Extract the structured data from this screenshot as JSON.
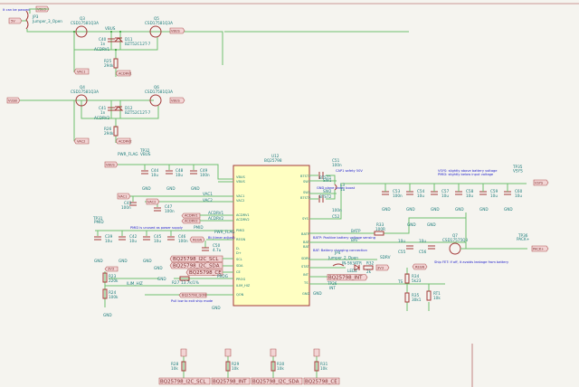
{
  "notes": {
    "jp3": "It can be passed",
    "pmid": "PMID is unused as power supply",
    "ilim": "Pull low to exit ship mode",
    "cap": "CAP1 safety 50V",
    "gnd": "GND plane under boost",
    "batp": "BATP: Positive battery voltage sensing",
    "bat": "BAT: Battery charging connection",
    "sys1": "VSYS: slightly above battery voltage",
    "sys2": "PMID: slightly below input voltage",
    "q7": "Ship FET: if off, it avoids leakage from battery",
    "tst": "Bt (timer adjust)"
  },
  "ic": {
    "ref": "U12",
    "value": "BQ25798",
    "left_pins": [
      "VBUS",
      "VBUS",
      "VAC1",
      "VAC2",
      "ACDRV1",
      "ACDRV2",
      "PMID",
      "REGN",
      "D-",
      "D+",
      "SCL",
      "SDA",
      "CE",
      "PROG",
      "ILIM_HIZ",
      "QON"
    ],
    "right_pins": [
      "BTST1",
      "SW1",
      "SW1",
      "SW2",
      "SW2",
      "BTST2",
      "SYS",
      "BATP",
      "BAT",
      "BAT",
      "SDRV",
      "STAT",
      "INT",
      "TS",
      "GND"
    ]
  },
  "components": [
    {
      "ref": "JP3",
      "value": "Jumper_3_Open"
    },
    {
      "ref": "Q3",
      "value": "CSD17581Q3A"
    },
    {
      "ref": "Q5",
      "value": "CSD17581Q3A"
    },
    {
      "ref": "Q4",
      "value": "CSD17581Q3A"
    },
    {
      "ref": "Q6",
      "value": "CSD17581Q3A"
    },
    {
      "ref": "C40",
      "value": "1n"
    },
    {
      "ref": "D11",
      "value": "BZT52C12T-7"
    },
    {
      "ref": "C41",
      "value": "1n"
    },
    {
      "ref": "D12",
      "value": "BZT52C12T-7"
    },
    {
      "ref": "R25",
      "value": "294k"
    },
    {
      "ref": "R26",
      "value": "294k"
    },
    {
      "ref": "C44",
      "value": "10u"
    },
    {
      "ref": "C48",
      "value": "10u"
    },
    {
      "ref": "C49",
      "value": "100n"
    },
    {
      "ref": "C43",
      "value": "100n"
    },
    {
      "ref": "C47",
      "value": "100n"
    },
    {
      "ref": "C39",
      "value": "10u"
    },
    {
      "ref": "C42",
      "value": "10u"
    },
    {
      "ref": "C45",
      "value": "10u"
    },
    {
      "ref": "C46",
      "value": "100n"
    },
    {
      "ref": "C50",
      "value": "4.7u"
    },
    {
      "ref": "R23",
      "value": "220k"
    },
    {
      "ref": "R24",
      "value": "100k"
    },
    {
      "ref": "R27",
      "value": "13.7k/1%"
    },
    {
      "ref": "C51",
      "value": "100n"
    },
    {
      "ref": "C52",
      "value": "100n"
    },
    {
      "ref": "L3",
      "value": "1u"
    },
    {
      "ref": "C53",
      "value": "100n"
    },
    {
      "ref": "C54",
      "value": "10u"
    },
    {
      "ref": "C57",
      "value": "10u"
    },
    {
      "ref": "C58",
      "value": "10u"
    },
    {
      "ref": "C59",
      "value": "10u"
    },
    {
      "ref": "C60",
      "value": "10u"
    },
    {
      "ref": "R33",
      "value": "100R"
    },
    {
      "ref": "C55",
      "value": "10u"
    },
    {
      "ref": "C56",
      "value": "10u"
    },
    {
      "ref": "Q7",
      "value": "CSD17575Q3"
    },
    {
      "ref": "JP4",
      "value": "Jumper_2_Open"
    },
    {
      "ref": "LED2",
      "value": "IN-S63ATR"
    },
    {
      "ref": "R32",
      "value": "2k"
    },
    {
      "ref": "R34",
      "value": "5k23"
    },
    {
      "ref": "R35",
      "value": "30k1"
    },
    {
      "ref": "RT1",
      "value": "10k"
    },
    {
      "ref": "R28",
      "value": "10k"
    },
    {
      "ref": "R29",
      "value": "10k"
    },
    {
      "ref": "R30",
      "value": "10k"
    },
    {
      "ref": "R31",
      "value": "10k"
    }
  ],
  "labels": {
    "vbus": "VBUS",
    "5v": "5V",
    "vusb": "VUSB",
    "vac1": "VAC1",
    "vac2": "VAC2",
    "vsys": "VSYS",
    "pack": "PACK+",
    "acdrv1": "ACDRV1",
    "acdrv2": "ACDRV2",
    "regn": "REGN",
    "3v3": "3V3",
    "scl": "BQ25798_I2C_SCL",
    "sda": "BQ25798_I2C_SDA",
    "ce": "BQ25798_CE",
    "int": "BQ25798_INT",
    "qon": "BQ25798_QON"
  },
  "nets": {
    "vbus": "VBUS",
    "vac1": "VAC1",
    "vac2": "VAC2",
    "pmid": "PMID",
    "ilim": "ILIM_HIZ",
    "prog": "PROG",
    "btst1": "BTST1",
    "btst2": "BTST2",
    "sw1": "SW1",
    "sw2": "SW2",
    "batp": "BATP",
    "bat": "BAT",
    "sdrv": "SDRV",
    "ts": "TS",
    "gnd": "GND",
    "acdrv1": "ACDRV1",
    "acdrv2": "ACDRV2"
  },
  "testpoints": {
    "tp32": "TP32",
    "tp32v": "VBUS",
    "tp31": "TP31",
    "tp31v": "PMID",
    "tp35": "TP35",
    "tp35v": "VSYS",
    "tp36": "TP36",
    "tp36v": "PACK+",
    "tp26": "TP26",
    "tp26v": "INT",
    "pwr": "PWR_FLAG"
  }
}
